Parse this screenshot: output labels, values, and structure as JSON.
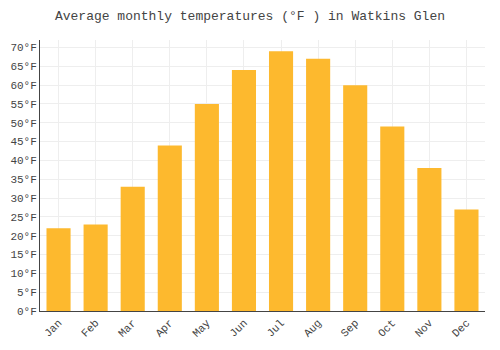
{
  "chart_data": {
    "type": "bar",
    "title": "Average monthly temperatures (°F ) in Watkins Glen",
    "categories": [
      "Jan",
      "Feb",
      "Mar",
      "Apr",
      "May",
      "Jun",
      "Jul",
      "Aug",
      "Sep",
      "Oct",
      "Nov",
      "Dec"
    ],
    "values": [
      22,
      23,
      33,
      44,
      55,
      64,
      69,
      67,
      60,
      49,
      38,
      27
    ],
    "color": "#FDB92E",
    "ylim": [
      0,
      72
    ],
    "yticks": [
      {
        "value": 0,
        "label": "0°F"
      },
      {
        "value": 5,
        "label": "5°F"
      },
      {
        "value": 10,
        "label": "10°F"
      },
      {
        "value": 15,
        "label": "15°F"
      },
      {
        "value": 20,
        "label": "20°F"
      },
      {
        "value": 25,
        "label": "25°F"
      },
      {
        "value": 30,
        "label": "30°F"
      },
      {
        "value": 35,
        "label": "35°F"
      },
      {
        "value": 40,
        "label": "40°F"
      },
      {
        "value": 45,
        "label": "45°F"
      },
      {
        "value": 50,
        "label": "50°F"
      },
      {
        "value": 55,
        "label": "55°F"
      },
      {
        "value": 60,
        "label": "60°F"
      },
      {
        "value": 65,
        "label": "65°F"
      },
      {
        "value": 70,
        "label": "70°F"
      }
    ],
    "grid": true
  }
}
